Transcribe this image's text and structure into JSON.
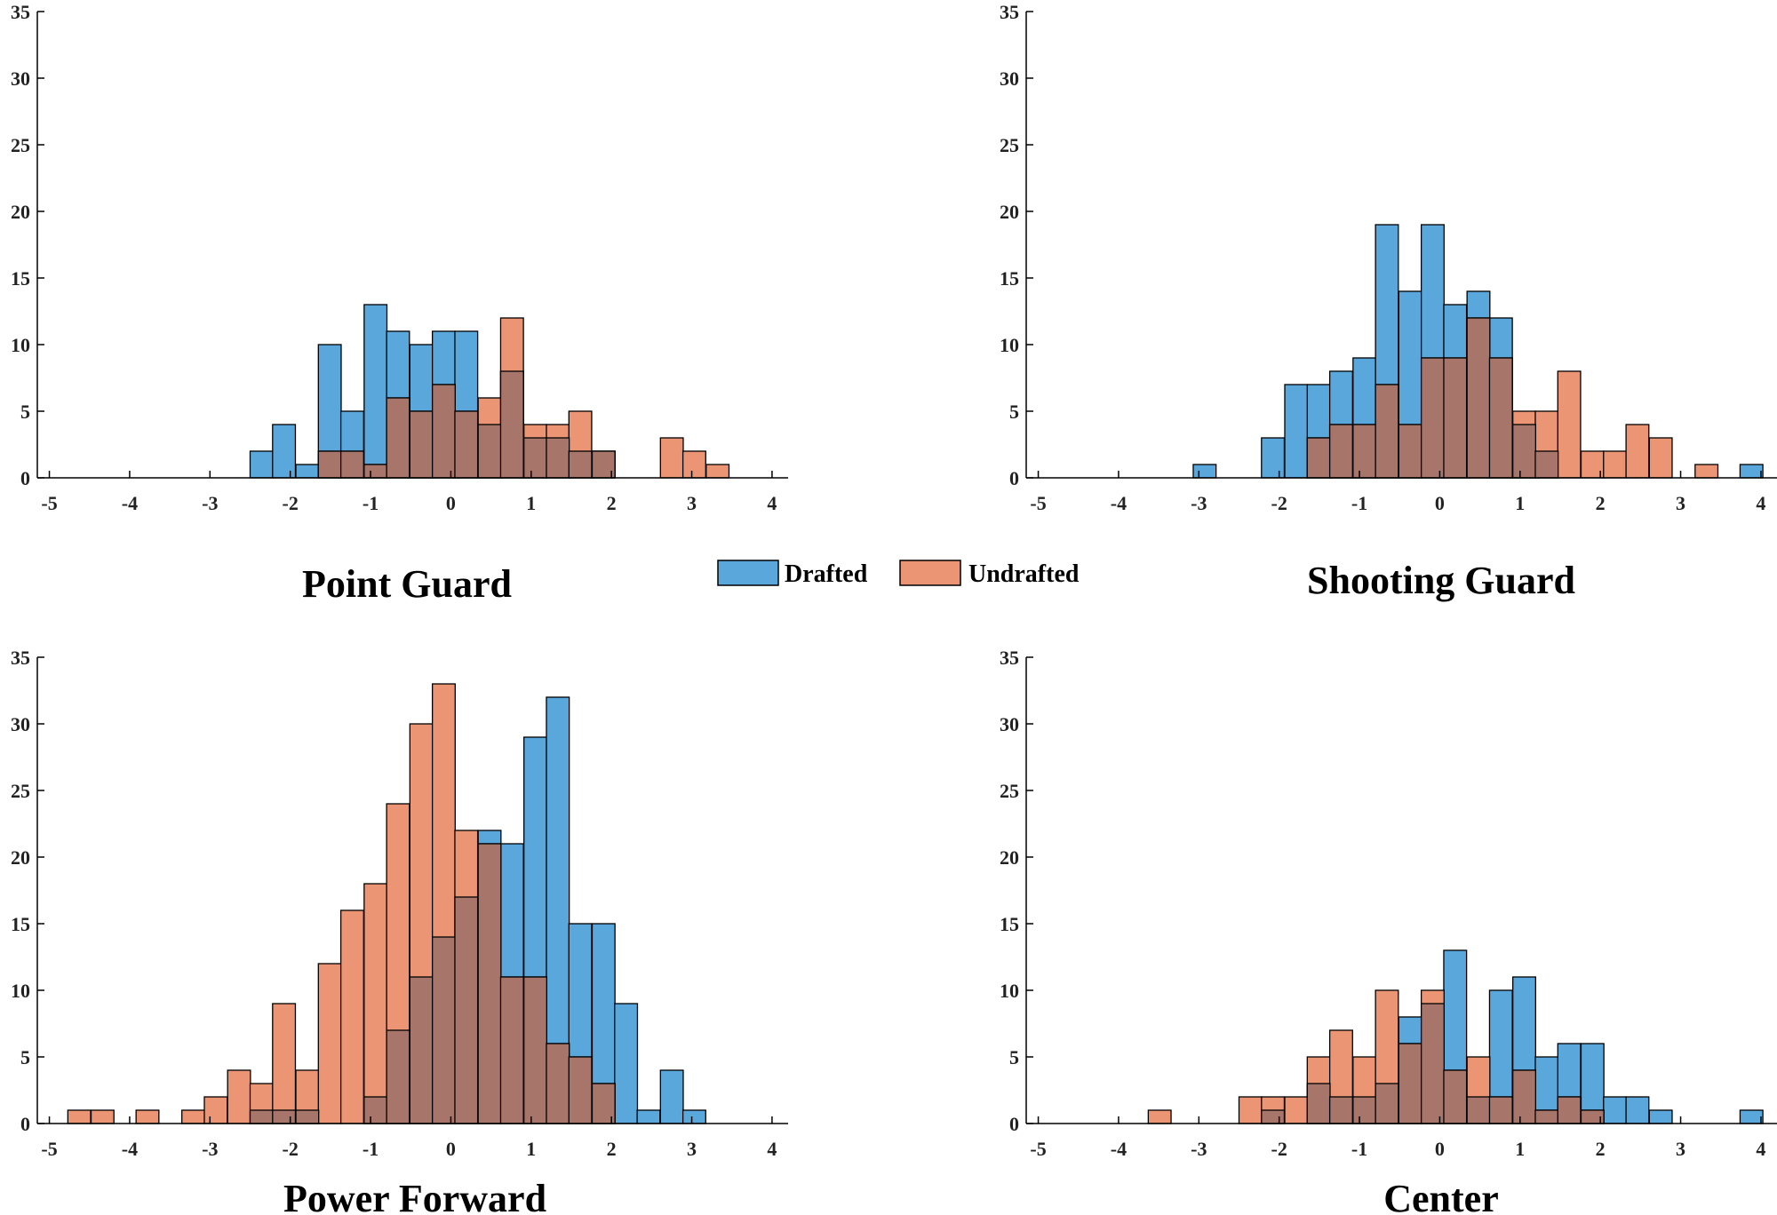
{
  "colors": {
    "drafted": "#5aa7dc",
    "undrafted": "#eb9574",
    "overlap": "#a8756b",
    "edge": "#000000",
    "axis": "#000000"
  },
  "legend": [
    {
      "label": "Drafted",
      "color": "#5aa7dc"
    },
    {
      "label": "Undrafted",
      "color": "#eb9574"
    }
  ],
  "chart_data": [
    {
      "type": "bar",
      "title": "Point Guard",
      "xlim": [
        -5.15,
        4.2
      ],
      "ylim": [
        0,
        35
      ],
      "xticks": [
        -5,
        -4,
        -3,
        -2,
        -1,
        0,
        1,
        2,
        3,
        4
      ],
      "yticks": [
        0,
        5,
        10,
        15,
        20,
        25,
        30,
        35
      ],
      "bin_width": 0.284,
      "series": [
        {
          "name": "Drafted",
          "bin_starts": [
            -2.5,
            -2.22,
            -1.93,
            -1.65,
            -1.37,
            -1.08,
            -0.8,
            -0.51,
            -0.23,
            0.05,
            0.34,
            0.62,
            0.91,
            1.19,
            1.47,
            1.76
          ],
          "values": [
            2,
            4,
            1,
            10,
            5,
            13,
            11,
            10,
            11,
            11,
            4,
            8,
            3,
            3,
            2,
            2
          ]
        },
        {
          "name": "Undrafted",
          "bin_starts": [
            -1.65,
            -1.37,
            -1.08,
            -0.8,
            -0.51,
            -0.23,
            0.05,
            0.34,
            0.62,
            0.91,
            1.19,
            1.47,
            1.76,
            2.61,
            2.89,
            3.18
          ],
          "values": [
            2,
            2,
            1,
            6,
            5,
            7,
            5,
            6,
            12,
            4,
            4,
            5,
            2,
            3,
            2,
            1
          ]
        }
      ]
    },
    {
      "type": "bar",
      "title": "Shooting Guard",
      "xlim": [
        -5.15,
        4.2
      ],
      "ylim": [
        0,
        35
      ],
      "xticks": [
        -5,
        -4,
        -3,
        -2,
        -1,
        0,
        1,
        2,
        3,
        4
      ],
      "yticks": [
        0,
        5,
        10,
        15,
        20,
        25,
        30,
        35
      ],
      "bin_width": 0.284,
      "series": [
        {
          "name": "Drafted",
          "bin_starts": [
            -3.07,
            -2.22,
            -1.93,
            -1.65,
            -1.37,
            -1.08,
            -0.8,
            -0.51,
            -0.23,
            0.05,
            0.34,
            0.62,
            0.91,
            1.19,
            3.74
          ],
          "values": [
            1,
            3,
            7,
            7,
            8,
            9,
            19,
            14,
            19,
            13,
            14,
            12,
            4,
            2,
            1
          ]
        },
        {
          "name": "Undrafted",
          "bin_starts": [
            -1.65,
            -1.37,
            -1.08,
            -0.8,
            -0.51,
            -0.23,
            0.05,
            0.34,
            0.62,
            0.91,
            1.19,
            1.47,
            1.76,
            2.04,
            2.32,
            2.61,
            3.18
          ],
          "values": [
            3,
            4,
            4,
            7,
            4,
            9,
            9,
            12,
            9,
            5,
            5,
            8,
            2,
            2,
            4,
            3,
            1
          ]
        }
      ]
    },
    {
      "type": "bar",
      "title": "Power Forward",
      "xlim": [
        -5.15,
        4.2
      ],
      "ylim": [
        0,
        35
      ],
      "xticks": [
        -5,
        -4,
        -3,
        -2,
        -1,
        0,
        1,
        2,
        3,
        4
      ],
      "yticks": [
        0,
        5,
        10,
        15,
        20,
        25,
        30,
        35
      ],
      "bin_width": 0.284,
      "series": [
        {
          "name": "Drafted",
          "bin_starts": [
            -2.5,
            -2.22,
            -1.93,
            -1.65,
            -1.37,
            -1.08,
            -0.8,
            -0.51,
            -0.23,
            0.05,
            0.34,
            0.62,
            0.91,
            1.19,
            1.47,
            1.76,
            2.04,
            2.32,
            2.61,
            2.89
          ],
          "values": [
            1,
            1,
            1,
            0,
            0,
            2,
            7,
            11,
            14,
            17,
            22,
            21,
            29,
            32,
            15,
            15,
            9,
            1,
            4,
            1
          ]
        },
        {
          "name": "Undrafted",
          "bin_starts": [
            -4.77,
            -4.48,
            -3.92,
            -3.35,
            -3.07,
            -2.78,
            -2.5,
            -2.22,
            -1.93,
            -1.65,
            -1.37,
            -1.08,
            -0.8,
            -0.51,
            -0.23,
            0.05,
            0.34,
            0.62,
            0.91,
            1.19,
            1.47,
            1.76
          ],
          "values": [
            1,
            1,
            1,
            1,
            2,
            4,
            3,
            9,
            4,
            12,
            16,
            18,
            24,
            30,
            33,
            22,
            21,
            11,
            11,
            6,
            5,
            3
          ]
        }
      ]
    },
    {
      "type": "bar",
      "title": "Center",
      "xlim": [
        -5.15,
        4.2
      ],
      "ylim": [
        0,
        35
      ],
      "xticks": [
        -5,
        -4,
        -3,
        -2,
        -1,
        0,
        1,
        2,
        3,
        4
      ],
      "yticks": [
        0,
        5,
        10,
        15,
        20,
        25,
        30,
        35
      ],
      "bin_width": 0.284,
      "series": [
        {
          "name": "Drafted",
          "bin_starts": [
            -2.22,
            -1.93,
            -1.65,
            -1.37,
            -1.08,
            -0.8,
            -0.51,
            -0.23,
            0.05,
            0.34,
            0.62,
            0.91,
            1.19,
            1.47,
            1.76,
            2.04,
            2.32,
            2.61,
            3.74
          ],
          "values": [
            1,
            0,
            3,
            2,
            2,
            3,
            8,
            9,
            13,
            2,
            10,
            11,
            5,
            6,
            6,
            2,
            2,
            1,
            1
          ]
        },
        {
          "name": "Undrafted",
          "bin_starts": [
            -3.63,
            -2.5,
            -2.22,
            -1.93,
            -1.65,
            -1.37,
            -1.08,
            -0.8,
            -0.51,
            -0.23,
            0.05,
            0.34,
            0.62,
            0.91,
            1.19,
            1.47,
            1.76
          ],
          "values": [
            1,
            2,
            2,
            2,
            5,
            7,
            5,
            10,
            6,
            10,
            4,
            5,
            2,
            4,
            1,
            2,
            1
          ]
        }
      ]
    }
  ]
}
